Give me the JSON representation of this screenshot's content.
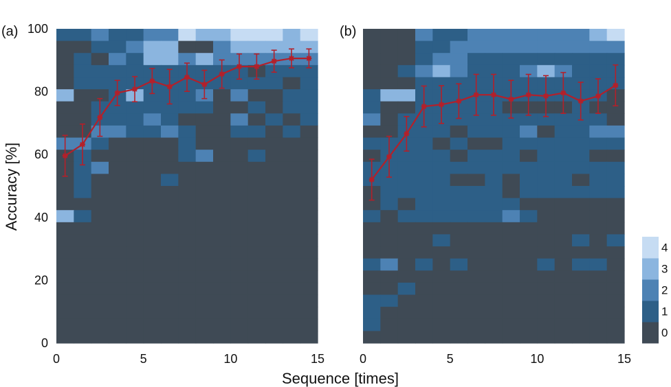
{
  "chart_data": {
    "type": "heatmap",
    "xlabel": "Sequence [times]",
    "ylabel": "Accuracy [%]",
    "xlim": [
      0,
      15
    ],
    "ylim": [
      0,
      100
    ],
    "x_ticks": [
      "0",
      "5",
      "10",
      "15"
    ],
    "y_ticks": [
      "0",
      "20",
      "40",
      "60",
      "80",
      "100"
    ],
    "colorbar": {
      "labels": [
        "0",
        "1",
        "2",
        "3",
        "4"
      ],
      "colors": [
        "#3f4a55",
        "#2d5f87",
        "#4d82b4",
        "#8bb5df",
        "#c6dcf3"
      ]
    },
    "line_color": "#b3202a",
    "panels": [
      {
        "label": "(a)",
        "counts": [
          [
            1,
            1,
            2,
            1,
            1,
            2,
            2,
            4,
            3,
            3,
            4,
            4,
            4,
            3,
            4
          ],
          [
            0,
            0,
            1,
            1,
            2,
            3,
            3,
            0,
            0,
            2,
            3,
            3,
            3,
            3,
            3
          ],
          [
            0,
            1,
            0,
            2,
            1,
            3,
            3,
            2,
            3,
            2,
            2,
            2,
            2,
            2,
            2
          ],
          [
            0,
            1,
            1,
            1,
            1,
            1,
            1,
            1,
            1,
            1,
            1,
            0,
            1,
            1,
            1
          ],
          [
            0,
            1,
            1,
            1,
            1,
            1,
            1,
            1,
            1,
            1,
            1,
            1,
            1,
            0,
            1
          ],
          [
            3,
            0,
            0,
            1,
            3,
            1,
            1,
            1,
            2,
            0,
            2,
            0,
            0,
            1,
            1
          ],
          [
            0,
            0,
            1,
            1,
            1,
            1,
            1,
            1,
            1,
            0,
            0,
            1,
            0,
            1,
            1
          ],
          [
            0,
            0,
            1,
            1,
            1,
            2,
            1,
            0,
            0,
            0,
            2,
            0,
            1,
            0,
            1
          ],
          [
            0,
            0,
            2,
            2,
            1,
            1,
            2,
            1,
            0,
            0,
            1,
            1,
            0,
            1,
            0
          ],
          [
            2,
            2,
            1,
            0,
            0,
            0,
            0,
            1,
            0,
            0,
            0,
            0,
            0,
            0,
            0
          ],
          [
            0,
            1,
            0,
            0,
            0,
            0,
            0,
            1,
            2,
            0,
            0,
            1,
            0,
            0,
            0
          ],
          [
            0,
            1,
            2,
            0,
            0,
            0,
            0,
            0,
            0,
            0,
            0,
            0,
            0,
            0,
            0
          ],
          [
            0,
            1,
            0,
            0,
            0,
            0,
            1,
            0,
            0,
            0,
            0,
            0,
            0,
            0,
            0
          ],
          [
            0,
            1,
            0,
            0,
            0,
            0,
            0,
            0,
            0,
            0,
            0,
            0,
            0,
            0,
            0
          ],
          [
            0,
            0,
            0,
            0,
            0,
            0,
            0,
            0,
            0,
            0,
            0,
            0,
            0,
            0,
            0
          ],
          [
            3,
            1,
            0,
            0,
            0,
            0,
            0,
            0,
            0,
            0,
            0,
            0,
            0,
            0,
            0
          ],
          [
            0,
            0,
            0,
            0,
            0,
            0,
            0,
            0,
            0,
            0,
            0,
            0,
            0,
            0,
            0
          ],
          [
            0,
            0,
            0,
            0,
            0,
            0,
            0,
            0,
            0,
            0,
            0,
            0,
            0,
            0,
            0
          ],
          [
            0,
            0,
            0,
            0,
            0,
            0,
            0,
            0,
            0,
            0,
            0,
            0,
            0,
            0,
            0
          ],
          [
            0,
            0,
            0,
            0,
            0,
            0,
            0,
            0,
            0,
            0,
            0,
            0,
            0,
            0,
            0
          ],
          [
            0,
            0,
            0,
            0,
            0,
            0,
            0,
            0,
            0,
            0,
            0,
            0,
            0,
            0,
            0
          ],
          [
            0,
            0,
            0,
            0,
            0,
            0,
            0,
            0,
            0,
            0,
            0,
            0,
            0,
            0,
            0
          ],
          [
            0,
            0,
            0,
            0,
            0,
            0,
            0,
            0,
            0,
            0,
            0,
            0,
            0,
            0,
            0
          ],
          [
            0,
            0,
            0,
            0,
            0,
            0,
            0,
            0,
            0,
            0,
            0,
            0,
            0,
            0,
            0
          ],
          [
            0,
            0,
            0,
            0,
            0,
            0,
            0,
            0,
            0,
            0,
            0,
            0,
            0,
            0,
            0
          ],
          [
            0,
            0,
            0,
            0,
            0,
            0,
            0,
            0,
            0,
            0,
            0,
            0,
            0,
            0,
            0
          ]
        ],
        "mean": {
          "x": [
            0.5,
            1.5,
            2.5,
            3.5,
            4.5,
            5.5,
            6.5,
            7.5,
            8.5,
            9.5,
            10.5,
            11.5,
            12.5,
            13.5,
            14.5
          ],
          "y": [
            59.6,
            63.2,
            71.8,
            79.6,
            80.8,
            83.4,
            81.6,
            84.6,
            82.3,
            85.6,
            88.0,
            88.0,
            89.7,
            90.6,
            90.6
          ],
          "err": [
            6.5,
            6.5,
            6.0,
            4.0,
            4.0,
            4.0,
            5.5,
            4.5,
            4.5,
            4.5,
            4.0,
            4.0,
            3.5,
            3.0,
            3.0
          ]
        }
      },
      {
        "label": "(b)",
        "counts": [
          [
            0,
            0,
            0,
            2,
            1,
            1,
            2,
            2,
            2,
            2,
            2,
            2,
            2,
            3,
            4
          ],
          [
            0,
            0,
            0,
            1,
            1,
            2,
            2,
            2,
            2,
            2,
            2,
            2,
            2,
            2,
            2
          ],
          [
            0,
            0,
            0,
            1,
            2,
            2,
            1,
            1,
            1,
            1,
            1,
            1,
            1,
            1,
            1
          ],
          [
            0,
            0,
            1,
            2,
            3,
            2,
            1,
            1,
            1,
            2,
            3,
            2,
            1,
            1,
            1
          ],
          [
            0,
            0,
            0,
            1,
            1,
            1,
            1,
            1,
            1,
            1,
            1,
            1,
            1,
            1,
            1
          ],
          [
            1,
            3,
            3,
            1,
            1,
            1,
            1,
            1,
            1,
            1,
            1,
            1,
            1,
            1,
            0
          ],
          [
            1,
            0,
            0,
            1,
            1,
            1,
            1,
            1,
            0,
            0,
            0,
            0,
            1,
            0,
            0
          ],
          [
            2,
            0,
            1,
            1,
            1,
            1,
            1,
            1,
            1,
            1,
            1,
            1,
            1,
            1,
            0
          ],
          [
            0,
            0,
            1,
            1,
            1,
            0,
            1,
            1,
            1,
            2,
            0,
            1,
            1,
            2,
            2
          ],
          [
            1,
            1,
            1,
            1,
            0,
            1,
            0,
            0,
            1,
            1,
            1,
            1,
            1,
            1,
            1
          ],
          [
            0,
            1,
            1,
            1,
            1,
            0,
            1,
            1,
            1,
            0,
            1,
            1,
            1,
            0,
            0
          ],
          [
            1,
            1,
            1,
            1,
            1,
            1,
            1,
            1,
            1,
            1,
            1,
            1,
            1,
            1,
            1
          ],
          [
            1,
            1,
            1,
            1,
            1,
            0,
            0,
            1,
            0,
            1,
            1,
            1,
            0,
            1,
            1
          ],
          [
            0,
            1,
            1,
            1,
            1,
            1,
            1,
            1,
            0,
            1,
            1,
            1,
            1,
            1,
            1
          ],
          [
            0,
            1,
            0,
            1,
            1,
            1,
            1,
            1,
            1,
            0,
            0,
            0,
            0,
            0,
            0
          ],
          [
            1,
            0,
            1,
            1,
            1,
            1,
            1,
            1,
            2,
            1,
            0,
            0,
            0,
            0,
            0
          ],
          [
            0,
            0,
            0,
            0,
            0,
            0,
            0,
            0,
            0,
            0,
            0,
            0,
            0,
            0,
            0
          ],
          [
            0,
            0,
            0,
            0,
            1,
            0,
            0,
            0,
            0,
            0,
            0,
            0,
            1,
            0,
            1
          ],
          [
            0,
            0,
            0,
            0,
            0,
            0,
            0,
            0,
            0,
            0,
            0,
            0,
            0,
            0,
            0
          ],
          [
            1,
            2,
            0,
            1,
            0,
            1,
            0,
            0,
            0,
            0,
            1,
            0,
            1,
            1,
            0
          ],
          [
            0,
            0,
            0,
            0,
            0,
            0,
            0,
            0,
            0,
            0,
            0,
            0,
            0,
            0,
            0
          ],
          [
            0,
            0,
            1,
            0,
            0,
            0,
            0,
            0,
            0,
            0,
            0,
            0,
            0,
            0,
            0
          ],
          [
            1,
            1,
            0,
            0,
            0,
            0,
            0,
            0,
            0,
            0,
            0,
            0,
            0,
            0,
            0
          ],
          [
            1,
            0,
            0,
            0,
            0,
            0,
            0,
            0,
            0,
            0,
            0,
            0,
            0,
            0,
            0
          ],
          [
            1,
            0,
            0,
            0,
            0,
            0,
            0,
            0,
            0,
            0,
            0,
            0,
            0,
            0,
            0
          ],
          [
            0,
            0,
            0,
            0,
            0,
            0,
            0,
            0,
            0,
            0,
            0,
            0,
            0,
            0,
            0
          ]
        ],
        "mean": {
          "x": [
            0.5,
            1.5,
            2.5,
            3.5,
            4.5,
            5.5,
            6.5,
            7.5,
            8.5,
            9.5,
            10.5,
            11.5,
            12.5,
            13.5,
            14.5
          ],
          "y": [
            52.0,
            59.3,
            66.6,
            75.3,
            75.9,
            77.0,
            79.0,
            79.0,
            77.6,
            79.0,
            78.6,
            79.6,
            77.0,
            78.6,
            82.0
          ],
          "err": [
            6.5,
            6.5,
            5.5,
            6.5,
            6.0,
            5.5,
            6.5,
            6.5,
            6.0,
            6.5,
            6.5,
            6.5,
            6.0,
            5.5,
            6.5
          ]
        }
      }
    ]
  }
}
